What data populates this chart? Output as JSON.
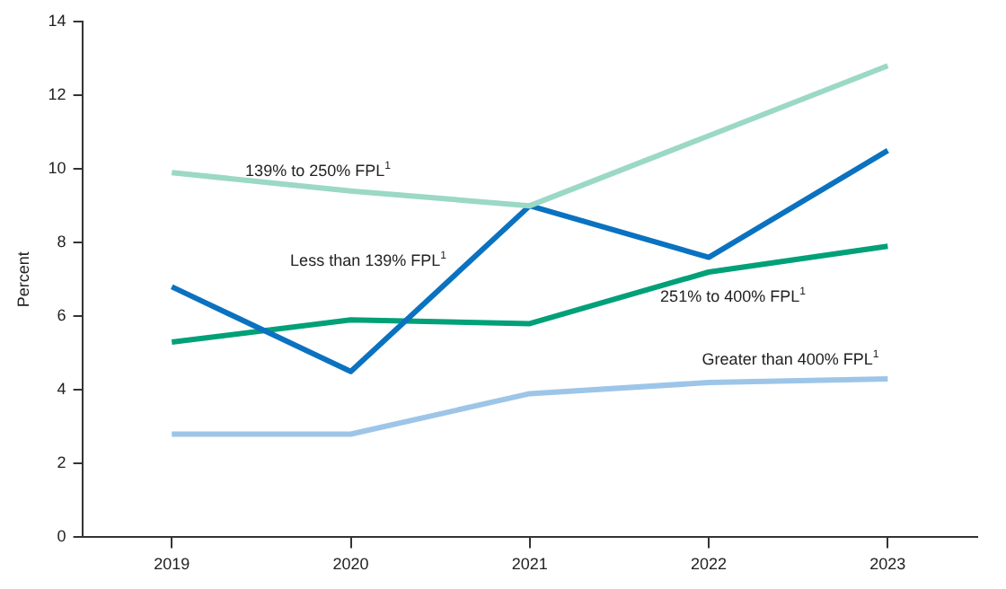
{
  "chart_data": {
    "type": "line",
    "ylabel": "Percent",
    "categories": [
      "2019",
      "2020",
      "2021",
      "2022",
      "2023"
    ],
    "series": [
      {
        "name": "139% to 250% FPL$^{1}$",
        "color": "#9bd8c6",
        "values": [
          9.9,
          9.4,
          9.0,
          10.9,
          12.8
        ]
      },
      {
        "name": "Less than 139% FPL$^{1}$",
        "color": "#0a72c0",
        "values": [
          6.8,
          4.5,
          9.0,
          7.6,
          10.5
        ]
      },
      {
        "name": "251% to 400% FPL$^{1}$",
        "color": "#00a078",
        "values": [
          5.3,
          5.9,
          5.8,
          7.2,
          7.9
        ]
      },
      {
        "name": "Greater than 400% FPL$^{1}$",
        "color": "#9dc5e8",
        "values": [
          2.8,
          2.8,
          3.9,
          4.2,
          4.3
        ]
      }
    ],
    "ylim": [
      0,
      14
    ],
    "yticks": [
      0,
      2,
      4,
      6,
      8,
      10,
      12,
      14
    ],
    "grid": false,
    "legend": false,
    "marker": "none",
    "line_style": "solid"
  }
}
